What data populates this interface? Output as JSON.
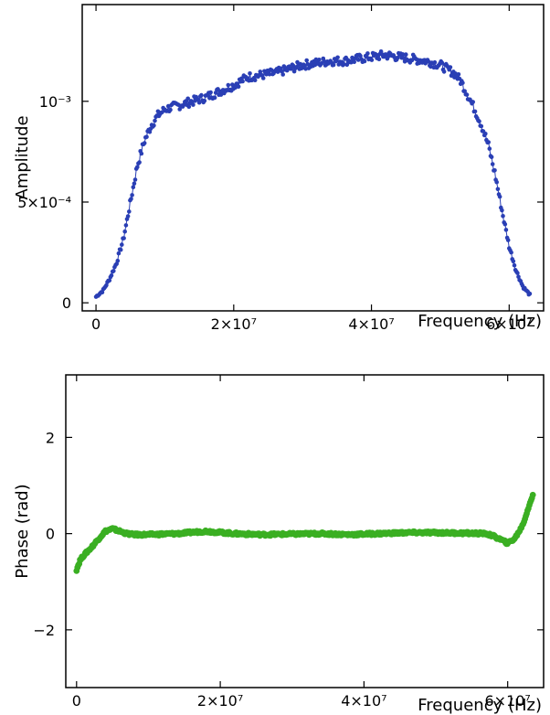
{
  "chart_data": [
    {
      "type": "scatter",
      "title": "",
      "xlabel": "Frequency (Hz)",
      "ylabel": "Amplitude",
      "xlim": [
        -2000000,
        65000000
      ],
      "ylim": [
        -4e-05,
        0.00148
      ],
      "xticks": [
        {
          "value": 0,
          "label": "0"
        },
        {
          "value": 20000000,
          "label": "2×10⁷"
        },
        {
          "value": 40000000,
          "label": "4×10⁷"
        },
        {
          "value": 60000000,
          "label": "6×10⁷"
        }
      ],
      "yticks": [
        {
          "value": 0,
          "label": "0"
        },
        {
          "value": 0.0005,
          "label": "5×10⁻⁴"
        },
        {
          "value": 0.001,
          "label": "10⁻³"
        }
      ],
      "grid": false,
      "marker_color": "#2a3fb5",
      "line_connected": true,
      "series": [
        {
          "x": [
            0,
            1000000,
            2000000,
            3000000,
            4000000,
            5000000,
            6000000,
            7000000,
            8000000,
            9000000,
            10000000,
            12000000,
            14000000,
            16000000,
            18000000,
            20000000,
            22000000,
            24000000,
            26000000,
            28000000,
            30000000,
            32000000,
            34000000,
            36000000,
            38000000,
            40000000,
            42000000,
            44000000,
            46000000,
            48000000,
            50000000,
            52000000,
            53000000,
            54000000,
            55000000,
            56000000,
            57000000,
            58000000,
            59000000,
            60000000,
            61000000,
            62000000,
            63000000
          ],
          "y": [
            3e-05,
            6e-05,
            0.00012,
            0.0002,
            0.00032,
            0.0005,
            0.00068,
            0.0008,
            0.00088,
            0.00093,
            0.00096,
            0.00098,
            0.001,
            0.00102,
            0.00105,
            0.00108,
            0.00112,
            0.00113,
            0.00114,
            0.00116,
            0.00118,
            0.00119,
            0.0012,
            0.0012,
            0.00121,
            0.00122,
            0.00123,
            0.00122,
            0.00121,
            0.0012,
            0.00118,
            0.00114,
            0.0011,
            0.00103,
            0.00096,
            0.00088,
            0.00078,
            0.00063,
            0.00045,
            0.00028,
            0.00016,
            8e-05,
            4e-05
          ]
        }
      ]
    },
    {
      "type": "scatter",
      "title": "",
      "xlabel": "Frequency (Hz)",
      "ylabel": "Phase (rad)",
      "xlim": [
        -1500000,
        65000000
      ],
      "ylim": [
        -3.2,
        3.3
      ],
      "xticks": [
        {
          "value": 0,
          "label": "0"
        },
        {
          "value": 20000000,
          "label": "2×10⁷"
        },
        {
          "value": 40000000,
          "label": "4×10⁷"
        },
        {
          "value": 60000000,
          "label": "6×10⁷"
        }
      ],
      "yticks": [
        {
          "value": -2,
          "label": "−2"
        },
        {
          "value": 0,
          "label": "0"
        },
        {
          "value": 2,
          "label": "2"
        }
      ],
      "grid": false,
      "marker_color": "#3aaf22",
      "line_connected": false,
      "series": [
        {
          "x": [
            0,
            500000,
            1000000,
            2000000,
            3000000,
            4000000,
            5000000,
            6000000,
            7000000,
            8000000,
            10000000,
            14000000,
            18000000,
            22000000,
            26000000,
            30000000,
            34000000,
            38000000,
            42000000,
            46000000,
            50000000,
            54000000,
            57000000,
            58000000,
            59000000,
            60000000,
            61000000,
            62000000,
            62500000,
            63000000,
            63500000
          ],
          "y": [
            -0.75,
            -0.55,
            -0.45,
            -0.3,
            -0.12,
            0.05,
            0.1,
            0.05,
            0.0,
            -0.02,
            -0.02,
            0.0,
            0.05,
            0.0,
            -0.02,
            -0.01,
            0.0,
            -0.02,
            0.0,
            0.02,
            0.02,
            0.01,
            0.0,
            -0.05,
            -0.12,
            -0.2,
            -0.1,
            0.15,
            0.35,
            0.6,
            0.8
          ]
        }
      ]
    }
  ]
}
